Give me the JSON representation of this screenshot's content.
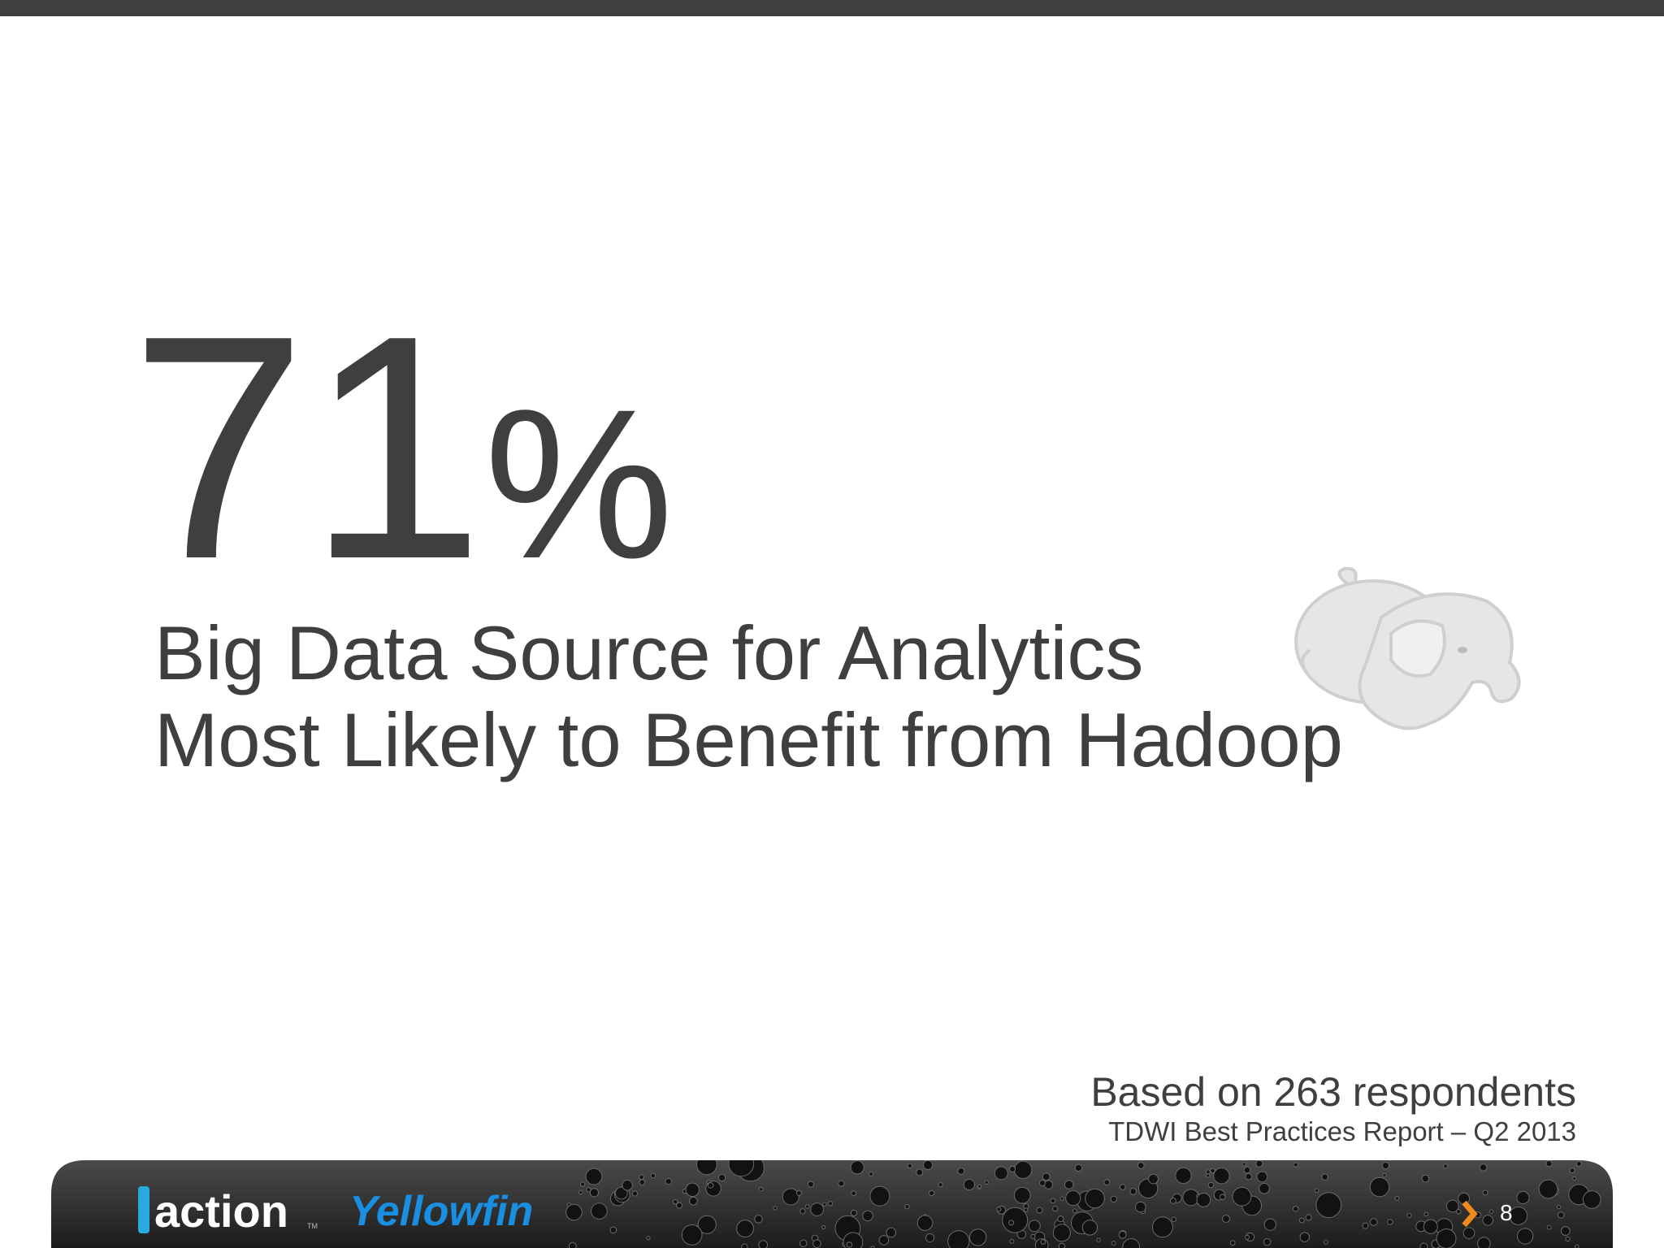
{
  "slide": {
    "stat": {
      "number": "71",
      "unit": "%"
    },
    "caption": [
      "Big Data Source for Analytics",
      "Most Likely to Benefit from Hadoop"
    ],
    "source": {
      "note": "Based on 263 respondents",
      "report": "TDWI Best Practices Report – Q2 2013"
    }
  },
  "footer": {
    "logos": [
      "action",
      "Yellowfin"
    ],
    "trademark": "TM",
    "page_number": "8"
  }
}
